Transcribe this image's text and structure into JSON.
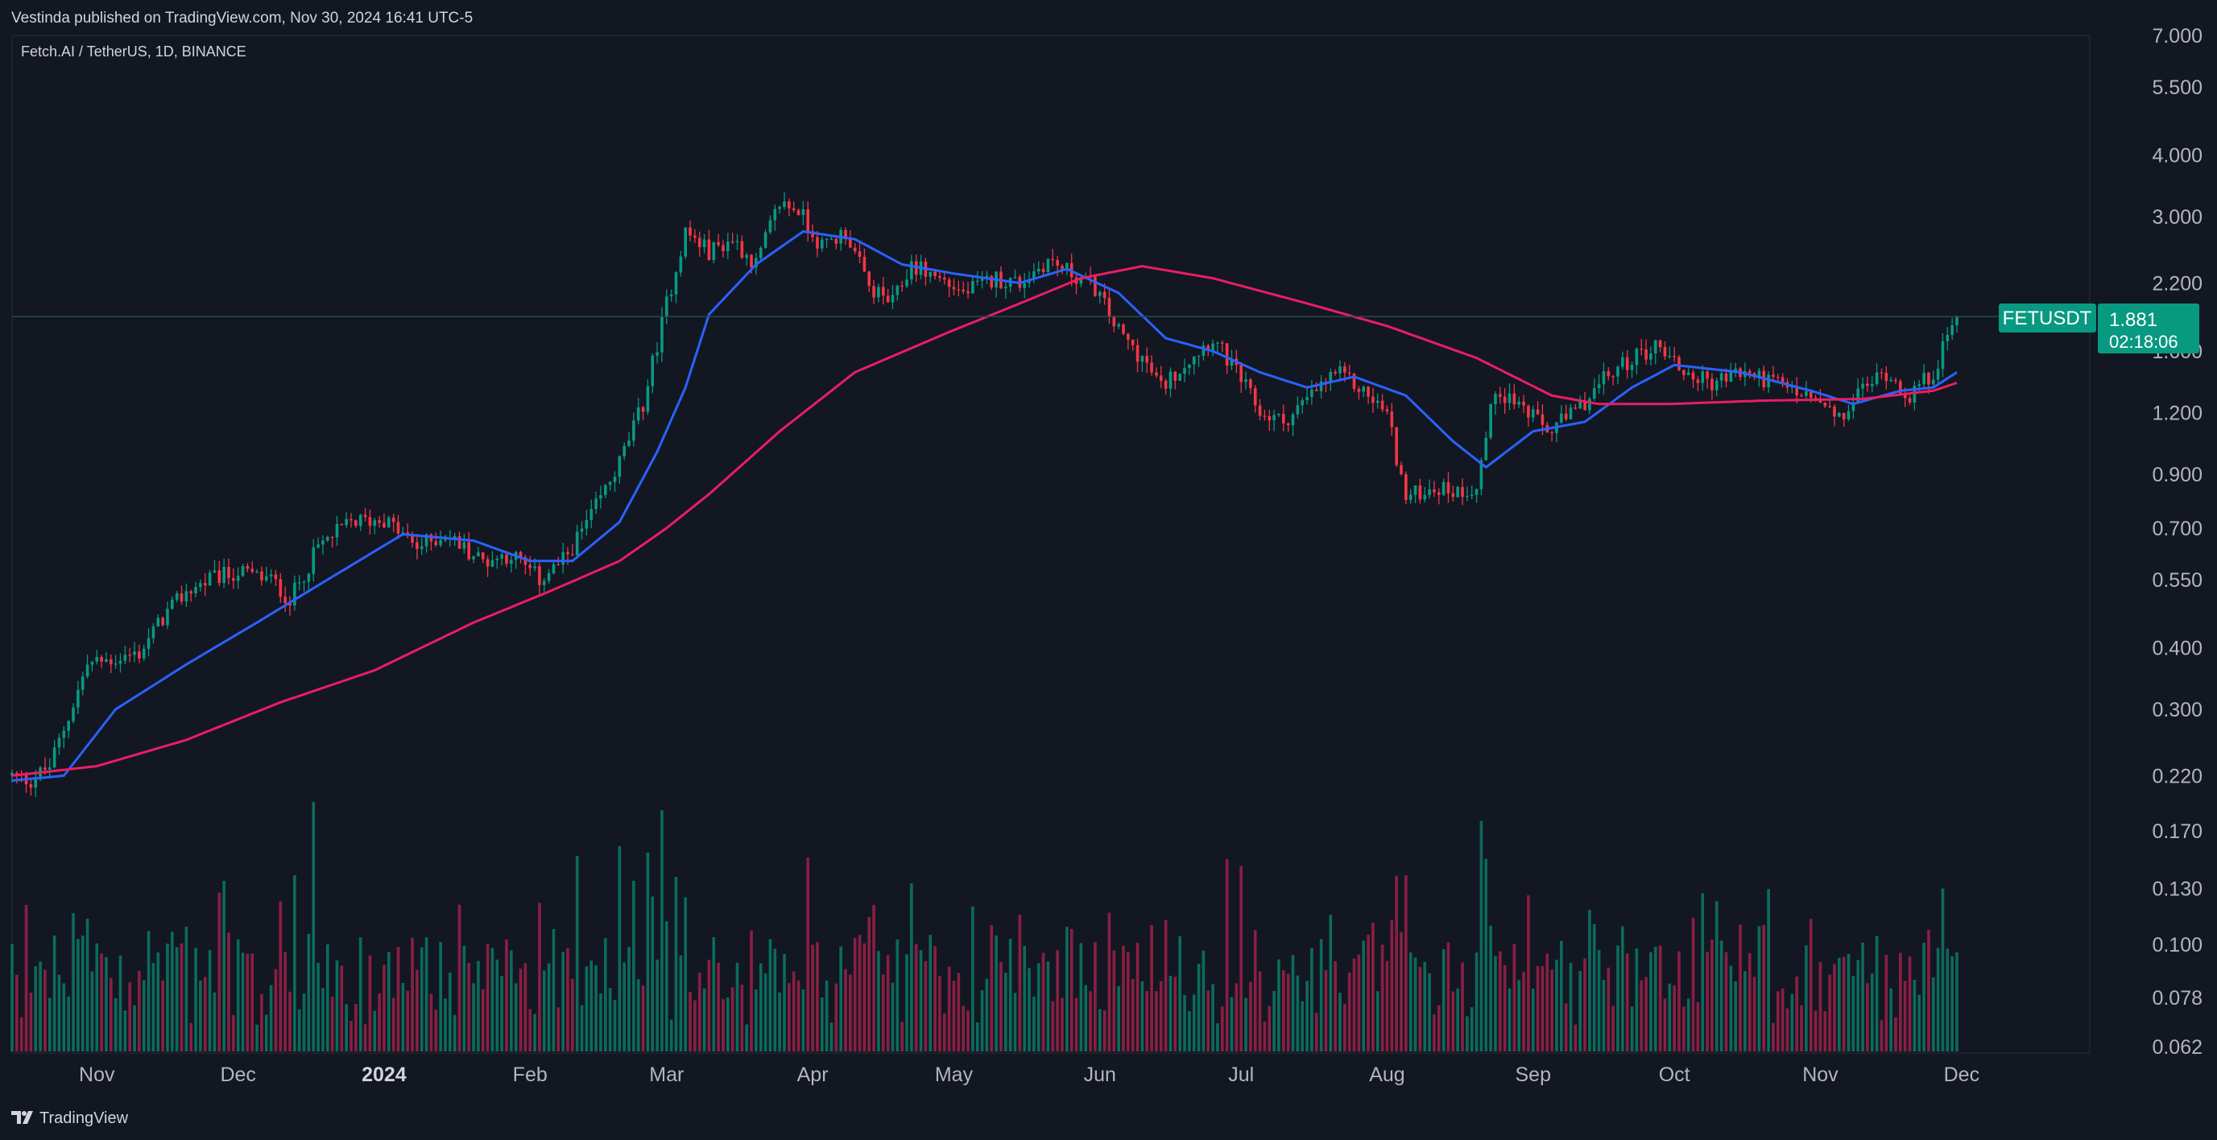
{
  "header": {
    "publisher_line": "Vestinda published on TradingView.com, Nov 30, 2024 16:41 UTC-5",
    "symbol_line": "Fetch.AI / TetherUS, 1D, BINANCE"
  },
  "price_badge": {
    "symbol": "FETUSDT",
    "price": "1.881",
    "countdown": "02:18:06",
    "color": "#089981"
  },
  "footer": {
    "brand": "TradingView"
  },
  "colors": {
    "background": "#131722",
    "up": "#089981",
    "down": "#f23645",
    "ma_fast": "#2962ff",
    "ma_slow": "#e91e63",
    "volume_up": "#0b6b5c",
    "volume_down": "#8a1f43",
    "grid": "#1e222d"
  },
  "chart_data": {
    "type": "candlestick",
    "title": "Fetch.AI / TetherUS, 1D, BINANCE",
    "y_scale": "log",
    "ylim": [
      0.062,
      7.0
    ],
    "price_ticks": [
      "7.000",
      "5.500",
      "4.000",
      "3.000",
      "2.200",
      "1.600",
      "1.200",
      "0.900",
      "0.700",
      "0.550",
      "0.400",
      "0.300",
      "0.220",
      "0.170",
      "0.130",
      "0.100",
      "0.078",
      "0.062"
    ],
    "x_ticks": [
      {
        "label": "Nov",
        "date": "2023-11-01",
        "bold": false
      },
      {
        "label": "Dec",
        "date": "2023-12-01",
        "bold": false
      },
      {
        "label": "2024",
        "date": "2024-01-01",
        "bold": true
      },
      {
        "label": "Feb",
        "date": "2024-02-01",
        "bold": false
      },
      {
        "label": "Mar",
        "date": "2024-03-01",
        "bold": false
      },
      {
        "label": "Apr",
        "date": "2024-04-01",
        "bold": false
      },
      {
        "label": "May",
        "date": "2024-05-01",
        "bold": false
      },
      {
        "label": "Jun",
        "date": "2024-06-01",
        "bold": false
      },
      {
        "label": "Jul",
        "date": "2024-07-01",
        "bold": false
      },
      {
        "label": "Aug",
        "date": "2024-08-01",
        "bold": false
      },
      {
        "label": "Sep",
        "date": "2024-09-01",
        "bold": false
      },
      {
        "label": "Oct",
        "date": "2024-10-01",
        "bold": false
      },
      {
        "label": "Nov",
        "date": "2024-11-01",
        "bold": false
      },
      {
        "label": "Dec",
        "date": "2024-12-01",
        "bold": false
      }
    ],
    "date_range": [
      "2023-10-14",
      "2024-11-30"
    ],
    "last_price": 1.881,
    "price_path": [
      [
        "2023-10-14",
        0.22
      ],
      [
        "2023-10-18",
        0.215
      ],
      [
        "2023-10-22",
        0.23
      ],
      [
        "2023-10-26",
        0.29
      ],
      [
        "2023-10-30",
        0.37
      ],
      [
        "2023-11-05",
        0.38
      ],
      [
        "2023-11-10",
        0.39
      ],
      [
        "2023-11-15",
        0.46
      ],
      [
        "2023-11-20",
        0.52
      ],
      [
        "2023-11-25",
        0.55
      ],
      [
        "2023-12-01",
        0.57
      ],
      [
        "2023-12-08",
        0.55
      ],
      [
        "2023-12-12",
        0.5
      ],
      [
        "2023-12-18",
        0.64
      ],
      [
        "2023-12-25",
        0.72
      ],
      [
        "2024-01-01",
        0.73
      ],
      [
        "2024-01-08",
        0.64
      ],
      [
        "2024-01-14",
        0.68
      ],
      [
        "2024-01-22",
        0.6
      ],
      [
        "2024-01-28",
        0.62
      ],
      [
        "2024-02-03",
        0.55
      ],
      [
        "2024-02-08",
        0.6
      ],
      [
        "2024-02-14",
        0.74
      ],
      [
        "2024-02-20",
        0.95
      ],
      [
        "2024-02-25",
        1.25
      ],
      [
        "2024-03-01",
        2.0
      ],
      [
        "2024-03-05",
        2.8
      ],
      [
        "2024-03-10",
        2.55
      ],
      [
        "2024-03-15",
        2.7
      ],
      [
        "2024-03-20",
        2.4
      ],
      [
        "2024-03-25",
        3.2
      ],
      [
        "2024-03-29",
        3.1
      ],
      [
        "2024-04-03",
        2.6
      ],
      [
        "2024-04-08",
        2.8
      ],
      [
        "2024-04-13",
        2.15
      ],
      [
        "2024-04-18",
        2.0
      ],
      [
        "2024-04-22",
        2.4
      ],
      [
        "2024-04-28",
        2.25
      ],
      [
        "2024-05-03",
        2.1
      ],
      [
        "2024-05-10",
        2.25
      ],
      [
        "2024-05-15",
        2.2
      ],
      [
        "2024-05-21",
        2.45
      ],
      [
        "2024-05-26",
        2.3
      ],
      [
        "2024-05-31",
        2.15
      ],
      [
        "2024-06-05",
        1.75
      ],
      [
        "2024-06-10",
        1.55
      ],
      [
        "2024-06-14",
        1.35
      ],
      [
        "2024-06-20",
        1.55
      ],
      [
        "2024-06-25",
        1.7
      ],
      [
        "2024-07-01",
        1.4
      ],
      [
        "2024-07-05",
        1.2
      ],
      [
        "2024-07-10",
        1.15
      ],
      [
        "2024-07-16",
        1.3
      ],
      [
        "2024-07-21",
        1.45
      ],
      [
        "2024-07-26",
        1.35
      ],
      [
        "2024-08-01",
        1.2
      ],
      [
        "2024-08-05",
        0.8
      ],
      [
        "2024-08-10",
        0.85
      ],
      [
        "2024-08-16",
        0.83
      ],
      [
        "2024-08-20",
        0.85
      ],
      [
        "2024-08-24",
        1.35
      ],
      [
        "2024-08-29",
        1.25
      ],
      [
        "2024-09-04",
        1.1
      ],
      [
        "2024-09-10",
        1.2
      ],
      [
        "2024-09-16",
        1.4
      ],
      [
        "2024-09-22",
        1.55
      ],
      [
        "2024-09-28",
        1.65
      ],
      [
        "2024-10-03",
        1.45
      ],
      [
        "2024-10-09",
        1.38
      ],
      [
        "2024-10-15",
        1.45
      ],
      [
        "2024-10-21",
        1.4
      ],
      [
        "2024-10-27",
        1.32
      ],
      [
        "2024-11-01",
        1.25
      ],
      [
        "2024-11-05",
        1.15
      ],
      [
        "2024-11-10",
        1.35
      ],
      [
        "2024-11-15",
        1.45
      ],
      [
        "2024-11-20",
        1.3
      ],
      [
        "2024-11-25",
        1.45
      ],
      [
        "2024-11-30",
        1.881
      ]
    ],
    "moving_averages": [
      {
        "period_hint": "fast",
        "color": "#2962ff",
        "points": [
          [
            "2023-10-14",
            0.215
          ],
          [
            "2023-10-25",
            0.22
          ],
          [
            "2023-11-05",
            0.3
          ],
          [
            "2023-11-20",
            0.37
          ],
          [
            "2023-12-05",
            0.45
          ],
          [
            "2023-12-20",
            0.55
          ],
          [
            "2024-01-05",
            0.68
          ],
          [
            "2024-01-20",
            0.66
          ],
          [
            "2024-02-01",
            0.6
          ],
          [
            "2024-02-10",
            0.6
          ],
          [
            "2024-02-20",
            0.72
          ],
          [
            "2024-02-28",
            1.0
          ],
          [
            "2024-03-05",
            1.35
          ],
          [
            "2024-03-10",
            1.9
          ],
          [
            "2024-03-20",
            2.4
          ],
          [
            "2024-03-30",
            2.8
          ],
          [
            "2024-04-10",
            2.7
          ],
          [
            "2024-04-20",
            2.4
          ],
          [
            "2024-05-01",
            2.3
          ],
          [
            "2024-05-15",
            2.2
          ],
          [
            "2024-05-25",
            2.35
          ],
          [
            "2024-06-05",
            2.1
          ],
          [
            "2024-06-15",
            1.7
          ],
          [
            "2024-06-25",
            1.6
          ],
          [
            "2024-07-05",
            1.45
          ],
          [
            "2024-07-15",
            1.35
          ],
          [
            "2024-07-25",
            1.42
          ],
          [
            "2024-08-05",
            1.3
          ],
          [
            "2024-08-15",
            1.05
          ],
          [
            "2024-08-22",
            0.93
          ],
          [
            "2024-09-01",
            1.1
          ],
          [
            "2024-09-12",
            1.15
          ],
          [
            "2024-09-22",
            1.35
          ],
          [
            "2024-10-01",
            1.5
          ],
          [
            "2024-10-15",
            1.45
          ],
          [
            "2024-10-30",
            1.33
          ],
          [
            "2024-11-08",
            1.25
          ],
          [
            "2024-11-18",
            1.33
          ],
          [
            "2024-11-25",
            1.35
          ],
          [
            "2024-11-30",
            1.45
          ]
        ]
      },
      {
        "period_hint": "slow",
        "color": "#e91e63",
        "points": [
          [
            "2023-10-14",
            0.22
          ],
          [
            "2023-11-01",
            0.23
          ],
          [
            "2023-11-20",
            0.26
          ],
          [
            "2023-12-10",
            0.31
          ],
          [
            "2023-12-30",
            0.36
          ],
          [
            "2024-01-20",
            0.45
          ],
          [
            "2024-02-05",
            0.52
          ],
          [
            "2024-02-20",
            0.6
          ],
          [
            "2024-03-01",
            0.7
          ],
          [
            "2024-03-10",
            0.82
          ],
          [
            "2024-03-25",
            1.1
          ],
          [
            "2024-04-10",
            1.45
          ],
          [
            "2024-04-30",
            1.75
          ],
          [
            "2024-05-15",
            2.0
          ],
          [
            "2024-05-28",
            2.25
          ],
          [
            "2024-06-10",
            2.38
          ],
          [
            "2024-06-25",
            2.25
          ],
          [
            "2024-07-15",
            2.0
          ],
          [
            "2024-08-01",
            1.8
          ],
          [
            "2024-08-20",
            1.55
          ],
          [
            "2024-09-05",
            1.3
          ],
          [
            "2024-09-15",
            1.25
          ],
          [
            "2024-09-30",
            1.25
          ],
          [
            "2024-10-20",
            1.27
          ],
          [
            "2024-11-10",
            1.28
          ],
          [
            "2024-11-25",
            1.33
          ],
          [
            "2024-11-30",
            1.38
          ]
        ]
      }
    ]
  }
}
